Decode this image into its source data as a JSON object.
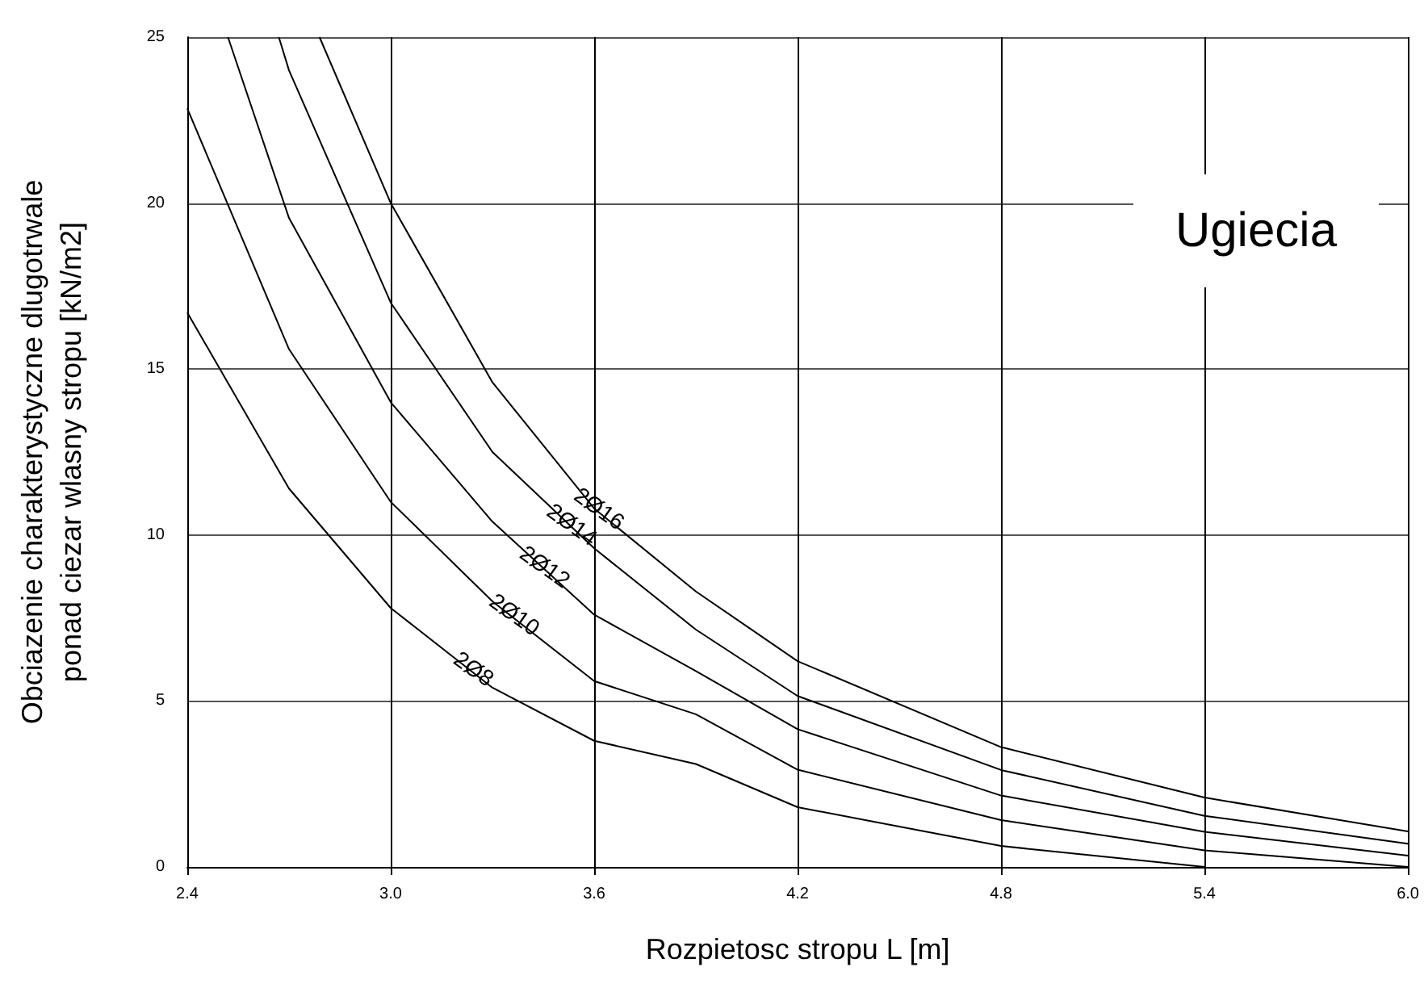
{
  "chart_data": {
    "type": "line",
    "xlabel": "Rozpietosc stropu L [m]",
    "ylabel": "Obciazenie charakterystyczne dlugotrwale\nponad ciezar wlasny stropu [kN/m2]",
    "xlim": [
      2.4,
      6.0
    ],
    "xticks": [
      {
        "value": 2.4,
        "label": "2.4"
      },
      {
        "value": 3.0,
        "label": "3.0"
      },
      {
        "value": 3.6,
        "label": "3.6"
      },
      {
        "value": 4.2,
        "label": "4.2"
      },
      {
        "value": 4.8,
        "label": "4.8"
      },
      {
        "value": 5.4,
        "label": "5.4"
      },
      {
        "value": 6.0,
        "label": "6.0"
      }
    ],
    "ylim": [
      0,
      25
    ],
    "yticks": [
      0,
      5,
      10,
      15,
      20,
      25
    ],
    "grid": true,
    "marker": "none",
    "line_style": "solid",
    "series": [
      {
        "color": "#000000",
        "x": [
          2.4,
          2.7,
          3.0,
          3.3,
          3.6,
          3.9,
          4.2,
          4.8,
          5.4
        ],
        "values": [
          16.7,
          11.4,
          7.8,
          5.4,
          3.8,
          3.1,
          1.8,
          0.63,
          0.0
        ]
      },
      {
        "color": "#000000",
        "x": [
          2.4,
          2.7,
          3.0,
          3.3,
          3.6,
          3.9,
          4.2,
          4.8,
          5.4,
          6.0
        ],
        "values": [
          22.85,
          15.6,
          11.0,
          8.0,
          5.6,
          4.6,
          2.93,
          1.41,
          0.5,
          0.0
        ]
      },
      {
        "color": "#000000",
        "x": [
          2.52,
          2.7,
          3.0,
          3.3,
          3.6,
          3.9,
          4.2,
          4.8,
          5.4,
          6.0
        ],
        "values": [
          25,
          19.55,
          14.0,
          10.4,
          7.6,
          5.9,
          4.15,
          2.15,
          1.06,
          0.34
        ]
      },
      {
        "color": "#000000",
        "x": [
          2.67,
          2.7,
          3.0,
          3.3,
          3.6,
          3.9,
          4.2,
          4.8,
          5.4,
          6.0
        ],
        "values": [
          25,
          24.0,
          17.0,
          12.5,
          9.6,
          7.15,
          5.15,
          2.92,
          1.54,
          0.7
        ]
      },
      {
        "color": "#000000",
        "x": [
          2.79,
          3.0,
          3.3,
          3.6,
          3.9,
          4.2,
          4.8,
          5.4,
          6.0
        ],
        "values": [
          25,
          20.0,
          14.6,
          10.8,
          8.3,
          6.2,
          3.61,
          2.09,
          1.07
        ]
      }
    ],
    "annotations": [
      {
        "text": "2Ø16",
        "x": 3.64,
        "y": 10.47
      },
      {
        "text": "2Ø14",
        "x": 3.56,
        "y": 9.99
      },
      {
        "text": "2Ø12",
        "x": 3.48,
        "y": 8.72
      },
      {
        "text": "2Ø10",
        "x": 3.39,
        "y": 7.28
      },
      {
        "text": "2Ø8",
        "x": 3.27,
        "y": 5.64
      },
      "Ugiecia"
    ]
  }
}
